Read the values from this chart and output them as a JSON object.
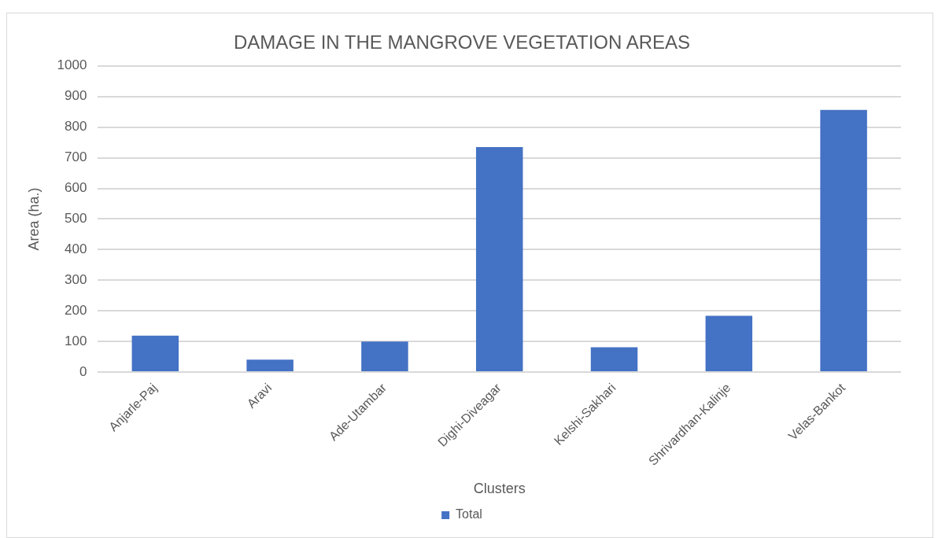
{
  "chart_data": {
    "type": "bar",
    "title": "DAMAGE IN THE MANGROVE VEGETATION AREAS",
    "xlabel": "Clusters",
    "ylabel": "Area (ha.)",
    "categories": [
      "Anjarle-Paj",
      "Aravi",
      "Ade-Utambar",
      "Dighi-Diveagar",
      "Kelshi-Sakhari",
      "Shrivardhan-Kalinje",
      "Velas-Bankot"
    ],
    "series": [
      {
        "name": "Total",
        "color": "#4472c4",
        "values": [
          119,
          41,
          100,
          735,
          81,
          184,
          856
        ]
      }
    ],
    "ylim": [
      0,
      1000
    ],
    "yticks": [
      0,
      100,
      200,
      300,
      400,
      500,
      600,
      700,
      800,
      900,
      1000
    ],
    "grid": "y",
    "legend": "bottom"
  }
}
